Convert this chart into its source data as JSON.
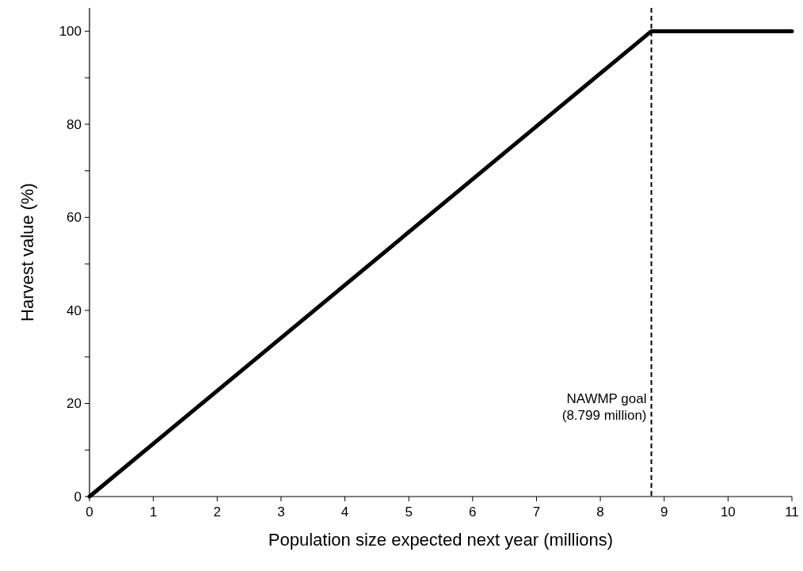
{
  "chart_data": {
    "type": "line",
    "xlabel": "Population size expected next year (millions)",
    "ylabel": "Harvest value (%)",
    "x": [
      0,
      8.799,
      11
    ],
    "series": [
      {
        "color": "#000000",
        "values": [
          0,
          100,
          100
        ]
      }
    ],
    "xlim": [
      0,
      11
    ],
    "xticks": [
      0,
      1,
      2,
      3,
      4,
      5,
      6,
      7,
      8,
      9,
      10,
      11
    ],
    "ylim": [
      0,
      105
    ],
    "yticks": [
      0,
      {
        "value": 10,
        "label": null
      },
      20,
      {
        "value": 30,
        "label": null
      },
      40,
      {
        "value": 50,
        "label": null
      },
      60,
      {
        "value": 70,
        "label": null
      },
      80,
      {
        "value": 90,
        "label": null
      },
      100
    ],
    "ref_lines": [
      {
        "axis": "x",
        "value": 8.799,
        "label": "NAWMP goal\n(8.799 million)",
        "color": "#000000",
        "line_style": "dashed"
      }
    ],
    "marker": "none",
    "line_style": "solid"
  }
}
